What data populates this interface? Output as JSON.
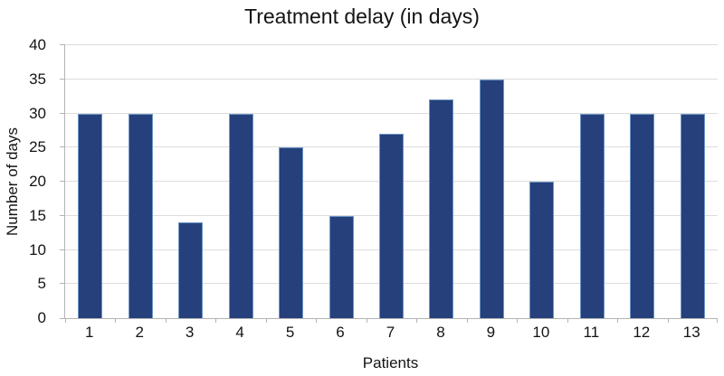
{
  "chart_data": {
    "type": "bar",
    "title": "Treatment delay (in days)",
    "categories": [
      "1",
      "2",
      "3",
      "4",
      "5",
      "6",
      "7",
      "8",
      "9",
      "10",
      "11",
      "12",
      "13"
    ],
    "values": [
      30,
      30,
      14,
      30,
      25,
      15,
      27,
      32,
      35,
      20,
      30,
      30,
      30
    ],
    "xlabel": "Patients",
    "ylabel": "Number of days",
    "ylim": [
      0,
      40
    ],
    "ytick_step": 5,
    "ytick_labels": [
      "0",
      "5",
      "10",
      "15",
      "20",
      "25",
      "30",
      "35",
      "40"
    ],
    "grid": "horizontal",
    "legend": "none",
    "bar_color": "#26407C",
    "bar_border_color": "#6C96C6",
    "gridline_color": "#DCDCDC",
    "axis_color": "#B3B3B3",
    "text_color": "#141414",
    "background_color": "#FFFFFF"
  }
}
